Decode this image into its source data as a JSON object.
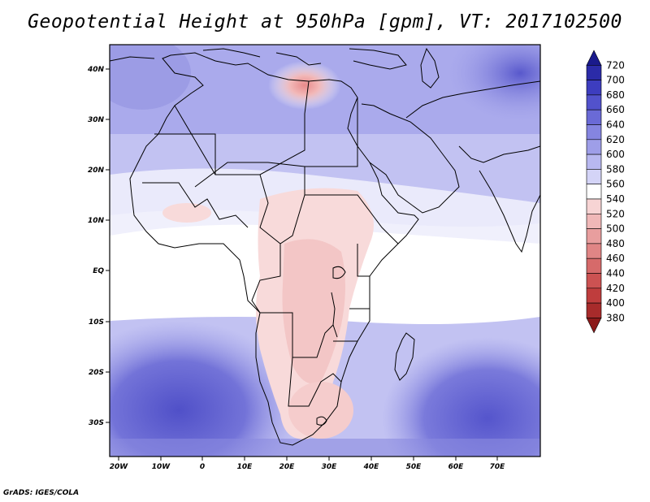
{
  "title": "Geopotential Height at 950hPa [gpm], VT: 2017102500",
  "footer": "GrADS: IGES/COLA",
  "map": {
    "lat_labels": [
      "40N",
      "30N",
      "20N",
      "10N",
      "EQ",
      "10S",
      "20S",
      "30S"
    ],
    "lon_labels": [
      "20W",
      "10W",
      "0",
      "10E",
      "20E",
      "30E",
      "40E",
      "50E",
      "60E",
      "70E"
    ]
  },
  "colorbar": {
    "levels": [
      "720",
      "700",
      "680",
      "660",
      "640",
      "620",
      "600",
      "580",
      "560",
      "540",
      "520",
      "500",
      "480",
      "460",
      "440",
      "420",
      "400",
      "380"
    ],
    "colors": [
      "#1a1a8c",
      "#2b2ba8",
      "#3d3dbf",
      "#5252cc",
      "#6a6ad6",
      "#8585e0",
      "#9e9ee8",
      "#b8b8f0",
      "#d4d4f7",
      "#ffffff",
      "#f7d4d4",
      "#f0b8b8",
      "#e89e9e",
      "#e08585",
      "#d66a6a",
      "#cc5252",
      "#bf3d3d",
      "#a82b2b",
      "#8c1a1a"
    ]
  }
}
